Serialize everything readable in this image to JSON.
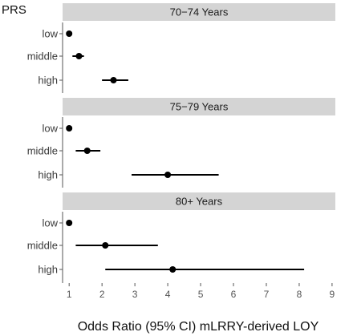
{
  "chart_data": {
    "type": "forest",
    "y_axis_title": "PRS",
    "x_axis_title": "Odds Ratio (95% CI) mLRRY-derived LOY",
    "x_ticks": [
      1,
      2,
      3,
      4,
      5,
      6,
      7,
      8,
      9
    ],
    "xlim": [
      0.8,
      9.1
    ],
    "grid": false,
    "categories": [
      "low",
      "middle",
      "high"
    ],
    "panels": [
      {
        "title": "70−74 Years",
        "rows": [
          {
            "label": "low",
            "or": 1.0,
            "lo": 1.0,
            "hi": 1.0
          },
          {
            "label": "middle",
            "or": 1.3,
            "lo": 1.1,
            "hi": 1.45
          },
          {
            "label": "high",
            "or": 2.35,
            "lo": 2.0,
            "hi": 2.8
          }
        ]
      },
      {
        "title": "75−79 Years",
        "rows": [
          {
            "label": "low",
            "or": 1.0,
            "lo": 1.0,
            "hi": 1.0
          },
          {
            "label": "middle",
            "or": 1.55,
            "lo": 1.2,
            "hi": 1.95
          },
          {
            "label": "high",
            "or": 4.0,
            "lo": 2.9,
            "hi": 5.55
          }
        ]
      },
      {
        "title": "80+ Years",
        "rows": [
          {
            "label": "low",
            "or": 1.0,
            "lo": 1.0,
            "hi": 1.0
          },
          {
            "label": "middle",
            "or": 2.1,
            "lo": 1.2,
            "hi": 3.7
          },
          {
            "label": "high",
            "or": 4.15,
            "lo": 2.1,
            "hi": 8.15
          }
        ]
      }
    ]
  },
  "colors": {
    "strip": "#d4d4d4",
    "marker": "#000000",
    "tick": "#555555"
  }
}
